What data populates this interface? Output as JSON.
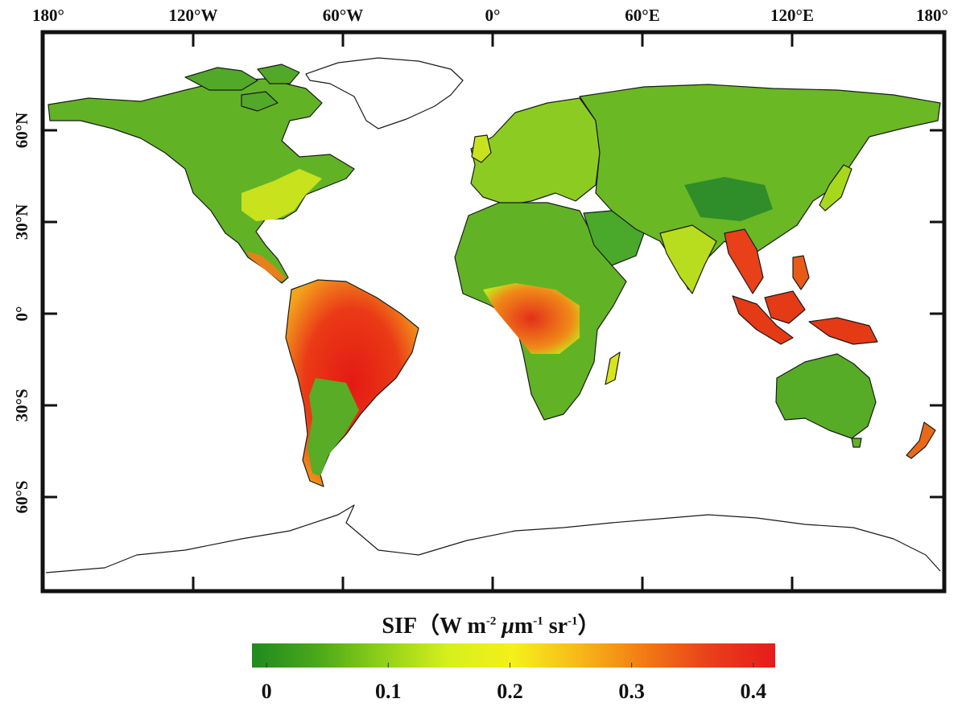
{
  "map": {
    "top_ticks": [
      "180°",
      "120°W",
      "60°W",
      "0°",
      "60°E",
      "120°E",
      "180°"
    ],
    "left_ticks": [
      "60°N",
      "30°N",
      "0°",
      "30°S",
      "60°S"
    ]
  },
  "colorbar": {
    "title_main": "SIF",
    "title_open": "（",
    "title_W": "W m",
    "title_exp1": "-2",
    "title_mu": "μ",
    "title_m": "m",
    "title_exp2": "-1",
    "title_sr": " sr",
    "title_exp3": "-1",
    "title_close": "）",
    "ticks": [
      "0",
      "0.1",
      "0.2",
      "0.3",
      "0.4"
    ],
    "tick_values": [
      0,
      0.1,
      0.2,
      0.3,
      0.4
    ],
    "range": [
      -0.012,
      0.418
    ],
    "colors": [
      "#1f8a1f",
      "#4aa81a",
      "#8fd01a",
      "#d6f01c",
      "#f5f01a",
      "#f7b81a",
      "#f27a14",
      "#e8401a",
      "#e81a1a"
    ]
  }
}
